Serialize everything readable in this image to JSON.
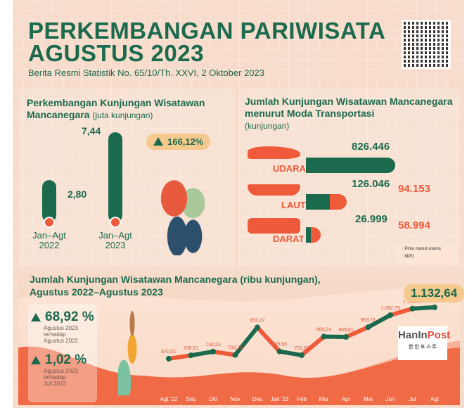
{
  "header": {
    "title_line1": "PERKEMBANGAN PARIWISATA",
    "title_line2": "AGUSTUS 2023",
    "subtitle": "Berita Resmi Statistik No. 65/10/Th. XXVI, 2 Oktober 2023"
  },
  "left_panel": {
    "title": "Perkembangan Kunjungan Wisatawan Mancanegara",
    "unit": "(juta kunjungan)",
    "growth": "166,12%",
    "bars": [
      {
        "label_line1": "Jan–Agt",
        "label_line2": "2022",
        "value": "2,80"
      },
      {
        "label_line1": "Jan–Agt",
        "label_line2": "2023",
        "value": "7,44"
      }
    ]
  },
  "right_panel": {
    "title": "Jumlah Kunjungan Wisatawan Mancanegara menurut Moda Transportasi",
    "unit": "(kunjungan)",
    "modes": [
      {
        "name": "UDARA",
        "main": "826.446"
      },
      {
        "name": "LAUT",
        "main": "126.046",
        "mpd": "94.153"
      },
      {
        "name": "DARAT",
        "main": "26.999",
        "mpd": "58.994"
      }
    ],
    "legend": {
      "main": ": Pintu masuk utama",
      "mpd": ": MPD"
    }
  },
  "bottom": {
    "title_line1": "Jumlah Kunjungan Wisatawan Mancanegara (ribu kunjungan),",
    "title_line2": "Agustus 2022–Agustus 2023",
    "stat1": {
      "value": "68,92 %",
      "desc": [
        "Agustus 2023",
        "terhadap",
        "Agustus 2022"
      ]
    },
    "stat2": {
      "value": "1,02 %",
      "desc": [
        "Agustus 2023",
        "terhadap",
        "Juli 2023"
      ]
    },
    "peak": "1.132,64",
    "logo_main": "HanIn",
    "logo_accent": "Post",
    "logo_sub": "한 인 포 스 트"
  },
  "chart_data": {
    "type": "line",
    "categories": [
      "Agt '22",
      "Sep",
      "Okt",
      "Nov",
      "Des",
      "Jan '23",
      "Feb",
      "Mar",
      "Apr",
      "Mei",
      "Jun",
      "Jul",
      "Agt"
    ],
    "values": [
      670.51,
      700.61,
      734.23,
      704.78,
      952.47,
      735.95,
      701.93,
      869.24,
      865.81,
      953.71,
      1062.79,
      1121.19,
      1132.64
    ],
    "labels": [
      "670,51",
      "700,61",
      "734,23",
      "704,78",
      "952,47",
      "735,95",
      "701,93",
      "869,24",
      "865,81",
      "953,71",
      "1.062,79",
      "1.121,19",
      ""
    ],
    "colors": {
      "green": "#1b6a4e",
      "orange": "#ee5a3a"
    }
  }
}
